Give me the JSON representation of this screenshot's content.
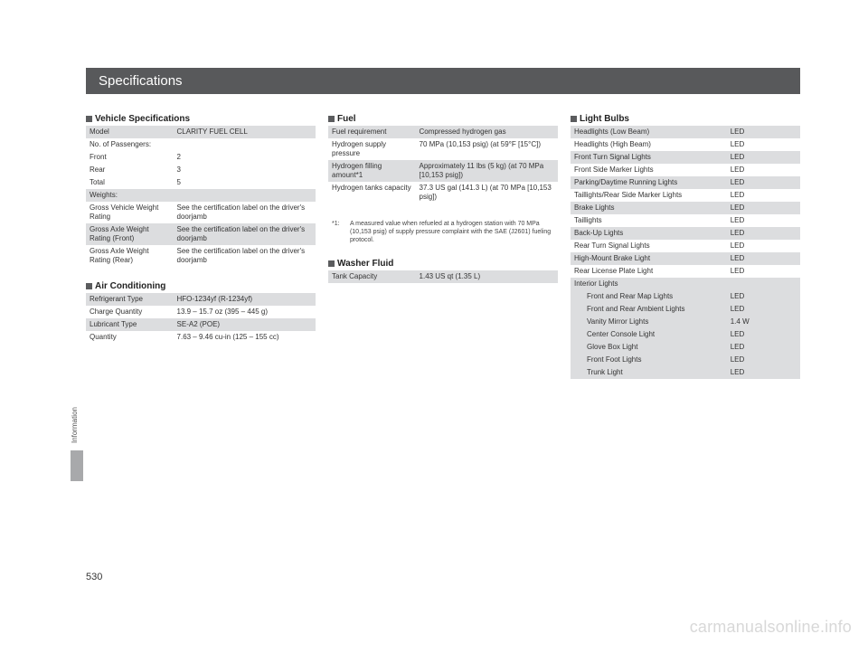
{
  "page_title": "Specifications",
  "side_tab": "Information",
  "page_number": "530",
  "watermark": "carmanualsonline.info",
  "col1": {
    "vehicle_specs": {
      "header": "Vehicle Specifications",
      "rows": [
        {
          "shade": true,
          "label": "Model",
          "value": "CLARITY FUEL CELL"
        },
        {
          "shade": false,
          "label": "No. of Passengers:",
          "value": ""
        },
        {
          "shade": false,
          "label": "Front",
          "value": "2"
        },
        {
          "shade": false,
          "label": "Rear",
          "value": "3"
        },
        {
          "shade": false,
          "label": "Total",
          "value": "5"
        },
        {
          "shade": true,
          "label": "Weights:",
          "value": ""
        },
        {
          "shade": false,
          "label": "Gross Vehicle Weight Rating",
          "value": "See the certification label on the driver's doorjamb"
        },
        {
          "shade": true,
          "label": "Gross Axle Weight Rating (Front)",
          "value": "See the certification label on the driver's doorjamb"
        },
        {
          "shade": false,
          "label": "Gross Axle Weight Rating (Rear)",
          "value": "See the certification label on the driver's doorjamb"
        }
      ]
    },
    "air_conditioning": {
      "header": "Air Conditioning",
      "rows": [
        {
          "shade": true,
          "label": "Refrigerant Type",
          "value": "HFO-1234yf (R-1234yf)"
        },
        {
          "shade": false,
          "label": "Charge Quantity",
          "value": "13.9 – 15.7 oz (395 – 445 g)"
        },
        {
          "shade": true,
          "label": "Lubricant Type",
          "value": "SE-A2 (POE)"
        },
        {
          "shade": false,
          "label": "Quantity",
          "value": "7.63 – 9.46 cu-in (125 – 155 cc)"
        }
      ]
    }
  },
  "col2": {
    "fuel": {
      "header": "Fuel",
      "rows": [
        {
          "shade": true,
          "label": "Fuel requirement",
          "value": "Compressed hydrogen gas"
        },
        {
          "shade": false,
          "label": "Hydrogen supply pressure",
          "value": "70 MPa (10,153 psig) (at 59°F [15°C])"
        },
        {
          "shade": true,
          "label": "Hydrogen filling amount*1",
          "value": "Approximately 11 lbs (5 kg) (at 70 MPa [10,153 psig])"
        },
        {
          "shade": false,
          "label": "Hydrogen tanks capacity",
          "value": "37.3 US gal (141.3 L) (at 70 MPa [10,153 psig])"
        }
      ],
      "footnote_marker": "*1:",
      "footnote_text": "A measured value when refueled at a hydrogen station with 70 MPa (10,153 psig) of supply pressure complaint with the SAE (J2601) fueling protocol."
    },
    "washer_fluid": {
      "header": "Washer Fluid",
      "rows": [
        {
          "shade": true,
          "label": "Tank Capacity",
          "value": "1.43 US qt (1.35 L)"
        }
      ]
    }
  },
  "col3": {
    "light_bulbs": {
      "header": "Light Bulbs",
      "rows": [
        {
          "shade": true,
          "indent": false,
          "label": "Headlights (Low Beam)",
          "value": "LED"
        },
        {
          "shade": false,
          "indent": false,
          "label": "Headlights (High Beam)",
          "value": "LED"
        },
        {
          "shade": true,
          "indent": false,
          "label": "Front Turn Signal Lights",
          "value": "LED"
        },
        {
          "shade": false,
          "indent": false,
          "label": "Front Side Marker Lights",
          "value": "LED"
        },
        {
          "shade": true,
          "indent": false,
          "label": "Parking/Daytime Running Lights",
          "value": "LED"
        },
        {
          "shade": false,
          "indent": false,
          "label": "Taillights/Rear Side Marker Lights",
          "value": "LED"
        },
        {
          "shade": true,
          "indent": false,
          "label": "Brake Lights",
          "value": "LED"
        },
        {
          "shade": false,
          "indent": false,
          "label": "Taillights",
          "value": "LED"
        },
        {
          "shade": true,
          "indent": false,
          "label": "Back-Up Lights",
          "value": "LED"
        },
        {
          "shade": false,
          "indent": false,
          "label": "Rear Turn Signal Lights",
          "value": "LED"
        },
        {
          "shade": true,
          "indent": false,
          "label": "High-Mount Brake Light",
          "value": "LED"
        },
        {
          "shade": false,
          "indent": false,
          "label": "Rear License Plate Light",
          "value": "LED"
        },
        {
          "shade": true,
          "indent": false,
          "label": "Interior Lights",
          "value": ""
        },
        {
          "shade": true,
          "indent": true,
          "label": "Front and Rear Map Lights",
          "value": "LED"
        },
        {
          "shade": true,
          "indent": true,
          "label": "Front and Rear Ambient Lights",
          "value": "LED"
        },
        {
          "shade": true,
          "indent": true,
          "label": "Vanity Mirror Lights",
          "value": "1.4 W"
        },
        {
          "shade": true,
          "indent": true,
          "label": "Center Console Light",
          "value": "LED"
        },
        {
          "shade": true,
          "indent": true,
          "label": "Glove Box Light",
          "value": "LED"
        },
        {
          "shade": true,
          "indent": true,
          "label": "Front Foot Lights",
          "value": "LED"
        },
        {
          "shade": true,
          "indent": true,
          "label": "Trunk Light",
          "value": "LED"
        }
      ]
    }
  }
}
